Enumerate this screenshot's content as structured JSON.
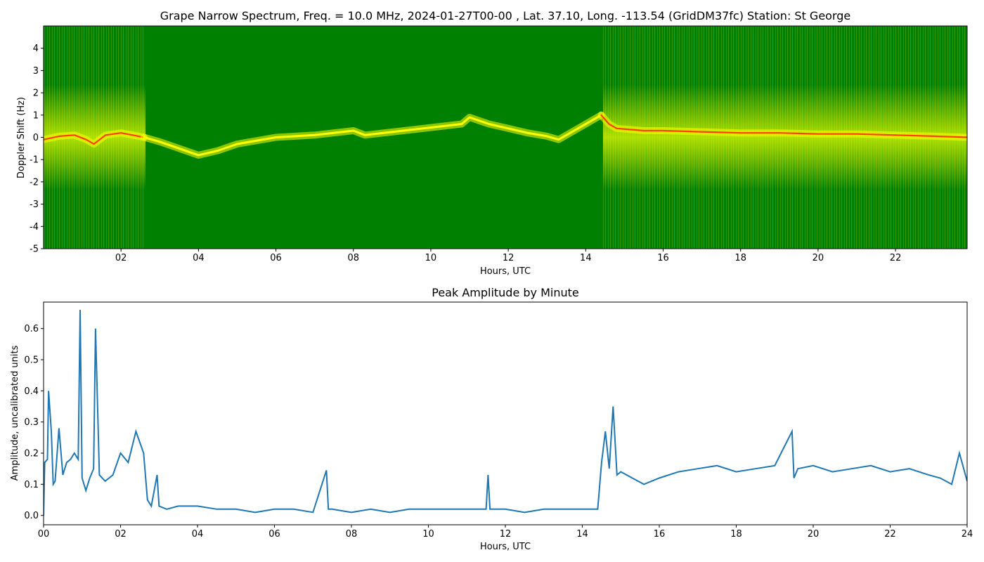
{
  "chart_data": [
    {
      "type": "heatmap",
      "title": "Grape Narrow Spectrum, Freq. = 10.0 MHz, 2024-01-27T00-00 , Lat.  37.10, Long. -113.54 (GridDM37fc) Station: St George",
      "xlabel": "Hours, UTC",
      "ylabel": "Doppler Shift (Hz)",
      "xlim": [
        0,
        23.85
      ],
      "ylim": [
        -5,
        5
      ],
      "x_ticks": [
        "02",
        "04",
        "06",
        "08",
        "10",
        "12",
        "14",
        "16",
        "18",
        "20",
        "22"
      ],
      "x_tick_values": [
        2,
        4,
        6,
        8,
        10,
        12,
        14,
        16,
        18,
        20,
        22
      ],
      "y_ticks": [
        "-5",
        "-4",
        "-3",
        "-2",
        "-1",
        "0",
        "1",
        "2",
        "3",
        "4"
      ],
      "y_tick_values": [
        -5,
        -4,
        -3,
        -2,
        -1,
        0,
        1,
        2,
        3,
        4
      ],
      "colors": {
        "background": "#008000",
        "mid": "#ffff00",
        "peak": "#ff4000"
      },
      "grid": false,
      "peak_trace": {
        "x": [
          0.0,
          0.4,
          0.8,
          1.1,
          1.3,
          1.6,
          2.0,
          2.3,
          2.6,
          3.0,
          3.5,
          4.0,
          4.5,
          5.0,
          6.0,
          7.0,
          8.0,
          8.3,
          10.8,
          11.0,
          11.5,
          12.0,
          12.5,
          13.0,
          13.3,
          14.4,
          14.5,
          14.6,
          14.8,
          15.5,
          16.0,
          17.0,
          18.0,
          19.0,
          20.0,
          21.0,
          22.0,
          23.0,
          23.85
        ],
        "y": [
          -0.1,
          0.05,
          0.1,
          -0.1,
          -0.3,
          0.1,
          0.2,
          0.1,
          0.0,
          -0.2,
          -0.5,
          -0.8,
          -0.6,
          -0.3,
          0.0,
          0.1,
          0.3,
          0.1,
          0.6,
          0.9,
          0.6,
          0.4,
          0.2,
          0.05,
          -0.1,
          1.0,
          0.8,
          0.6,
          0.4,
          0.3,
          0.3,
          0.25,
          0.2,
          0.2,
          0.15,
          0.15,
          0.1,
          0.05,
          0.0
        ],
        "segments": [
          [
            0,
            2.6,
            "peak"
          ],
          [
            2.6,
            14.4,
            "mid"
          ],
          [
            14.4,
            23.85,
            "peak"
          ]
        ]
      }
    },
    {
      "type": "line",
      "title": "Peak Amplitude by Minute",
      "xlabel": "Hours, UTC",
      "ylabel": "Amplitude, uncalibrated units",
      "xlim": [
        0,
        24
      ],
      "ylim": [
        -0.03,
        0.685
      ],
      "x_ticks": [
        "00",
        "02",
        "04",
        "06",
        "08",
        "10",
        "12",
        "14",
        "16",
        "18",
        "20",
        "22",
        "24"
      ],
      "x_tick_values": [
        0,
        2,
        4,
        6,
        8,
        10,
        12,
        14,
        16,
        18,
        20,
        22,
        24
      ],
      "y_ticks": [
        "0.0",
        "0.1",
        "0.2",
        "0.3",
        "0.4",
        "0.5",
        "0.6"
      ],
      "y_tick_values": [
        0.0,
        0.1,
        0.2,
        0.3,
        0.4,
        0.5,
        0.6
      ],
      "color": "#1f77b4",
      "grid": false,
      "x": [
        0.0,
        0.03,
        0.1,
        0.13,
        0.2,
        0.25,
        0.3,
        0.4,
        0.5,
        0.6,
        0.7,
        0.8,
        0.9,
        0.95,
        1.0,
        1.1,
        1.2,
        1.3,
        1.35,
        1.45,
        1.6,
        1.8,
        2.0,
        2.2,
        2.4,
        2.6,
        2.7,
        2.8,
        2.95,
        3.0,
        3.2,
        3.5,
        4.0,
        4.5,
        5.0,
        5.5,
        6.0,
        6.5,
        7.0,
        7.35,
        7.4,
        7.5,
        8.0,
        8.5,
        9.0,
        9.5,
        10.0,
        10.5,
        11.0,
        11.5,
        11.55,
        11.6,
        12.0,
        12.5,
        13.0,
        13.5,
        14.0,
        14.4,
        14.5,
        14.6,
        14.7,
        14.8,
        14.9,
        15.0,
        15.3,
        15.6,
        16.0,
        16.5,
        17.0,
        17.5,
        18.0,
        18.5,
        19.0,
        19.45,
        19.5,
        19.6,
        20.0,
        20.5,
        21.0,
        21.5,
        22.0,
        22.5,
        23.0,
        23.3,
        23.6,
        23.8,
        24.0
      ],
      "y": [
        0.0,
        0.17,
        0.18,
        0.4,
        0.27,
        0.1,
        0.11,
        0.28,
        0.13,
        0.17,
        0.18,
        0.2,
        0.18,
        0.66,
        0.12,
        0.08,
        0.12,
        0.15,
        0.6,
        0.13,
        0.11,
        0.13,
        0.2,
        0.17,
        0.27,
        0.2,
        0.05,
        0.03,
        0.13,
        0.03,
        0.02,
        0.03,
        0.03,
        0.02,
        0.02,
        0.01,
        0.02,
        0.02,
        0.01,
        0.145,
        0.02,
        0.02,
        0.01,
        0.02,
        0.01,
        0.02,
        0.02,
        0.02,
        0.02,
        0.02,
        0.13,
        0.02,
        0.02,
        0.01,
        0.02,
        0.02,
        0.02,
        0.02,
        0.17,
        0.27,
        0.15,
        0.35,
        0.13,
        0.14,
        0.12,
        0.1,
        0.12,
        0.14,
        0.15,
        0.16,
        0.14,
        0.15,
        0.16,
        0.27,
        0.12,
        0.15,
        0.16,
        0.14,
        0.15,
        0.16,
        0.14,
        0.15,
        0.13,
        0.12,
        0.1,
        0.2,
        0.11
      ]
    }
  ]
}
